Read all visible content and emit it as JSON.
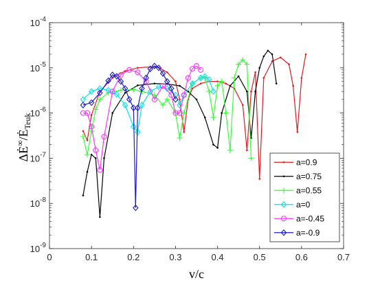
{
  "chart_data": {
    "type": "line",
    "title": "",
    "xlabel": "v/c",
    "ylabel_parts": {
      "prefix": "ΔĖ",
      "sup": "∞",
      "mid": "/Ė",
      "sub": "Teuk"
    },
    "xlim": [
      0,
      0.7
    ],
    "ylim": [
      1e-09,
      0.0001
    ],
    "yscale": "log",
    "x_ticks": [
      "0",
      "0.1",
      "0.2",
      "0.3",
      "0.4",
      "0.5",
      "0.6",
      "0.7"
    ],
    "y_ticks": [
      {
        "base": "10",
        "exp": "-9"
      },
      {
        "base": "10",
        "exp": "-8"
      },
      {
        "base": "10",
        "exp": "-7"
      },
      {
        "base": "10",
        "exp": "-6"
      },
      {
        "base": "10",
        "exp": "-5"
      },
      {
        "base": "10",
        "exp": "-4"
      }
    ],
    "grid": false,
    "legend_position": "bottom-right",
    "series": [
      {
        "name": "a=0.9",
        "color": "#e31a1c",
        "marker": "dot",
        "x": [
          0.08,
          0.09,
          0.1,
          0.12,
          0.15,
          0.18,
          0.21,
          0.24,
          0.26,
          0.28,
          0.3,
          0.31,
          0.32,
          0.33,
          0.34,
          0.36,
          0.38,
          0.4,
          0.42,
          0.44,
          0.46,
          0.47,
          0.48,
          0.49,
          0.5,
          0.51,
          0.53,
          0.55,
          0.57,
          0.58,
          0.59,
          0.6,
          0.61
        ],
        "y": [
          4e-07,
          2.5e-07,
          9e-07,
          3e-06,
          6e-06,
          8.5e-06,
          1e-05,
          1.05e-05,
          1.02e-05,
          8e-06,
          5e-06,
          2e-06,
          3.8e-07,
          2e-06,
          3.5e-06,
          4.5e-06,
          5e-06,
          5e-06,
          4.5e-06,
          3.5e-06,
          1.5e-06,
          1.5e-07,
          3e-06,
          8e-06,
          3.5e-08,
          6e-06,
          1.4e-05,
          1.7e-05,
          1.2e-05,
          4e-06,
          3.8e-07,
          6e-06,
          2e-05
        ]
      },
      {
        "name": "a=0.75",
        "color": "#000000",
        "marker": "dot",
        "x": [
          0.08,
          0.09,
          0.1,
          0.11,
          0.12,
          0.13,
          0.15,
          0.18,
          0.21,
          0.25,
          0.28,
          0.31,
          0.33,
          0.35,
          0.37,
          0.39,
          0.4,
          0.41,
          0.43,
          0.45,
          0.47,
          0.48,
          0.49,
          0.5,
          0.51,
          0.52,
          0.53,
          0.54
        ],
        "y": [
          1.5e-08,
          5e-08,
          1.2e-07,
          1e-07,
          5e-09,
          1e-07,
          1e-06,
          2.8e-06,
          4.1e-06,
          4.5e-06,
          4.4e-06,
          4e-06,
          3e-06,
          2e-06,
          8e-07,
          2e-07,
          1.7e-07,
          1e-06,
          4e-06,
          6.5e-06,
          3e-06,
          2.8e-07,
          3e-06,
          1e-05,
          1.8e-05,
          2.4e-05,
          2e-05,
          4.5e-06
        ]
      },
      {
        "name": "a=0.55",
        "color": "#33ff33",
        "marker": "plus",
        "x": [
          0.08,
          0.09,
          0.1,
          0.11,
          0.12,
          0.14,
          0.17,
          0.2,
          0.22,
          0.25,
          0.27,
          0.28,
          0.3,
          0.31,
          0.32,
          0.34,
          0.36,
          0.37,
          0.38,
          0.39,
          0.4,
          0.41,
          0.42,
          0.43,
          0.44,
          0.45,
          0.46,
          0.47,
          0.48
        ],
        "y": [
          3e-07,
          1.2e-07,
          4e-07,
          1.2e-06,
          2e-06,
          2.8e-06,
          3.2e-06,
          3.3e-06,
          3e-06,
          2.5e-06,
          1.5e-06,
          2e-06,
          1e-06,
          2.8e-07,
          1e-06,
          4.5e-06,
          6e-06,
          6e-06,
          3e-06,
          8e-07,
          4e-06,
          5e-06,
          1e-06,
          1.5e-07,
          6e-06,
          1.2e-05,
          1.5e-05,
          1.2e-05,
          1e-07
        ]
      },
      {
        "name": "a=0",
        "color": "#00e5ee",
        "marker": "diamond",
        "x": [
          0.08,
          0.1,
          0.12,
          0.14,
          0.16,
          0.18,
          0.2,
          0.21,
          0.22,
          0.24,
          0.26,
          0.28,
          0.3,
          0.31,
          0.32,
          0.34,
          0.36,
          0.37,
          0.38,
          0.39
        ],
        "y": [
          2e-06,
          3e-06,
          3.5e-06,
          3.2e-06,
          2.6e-06,
          1.5e-06,
          5e-07,
          3.8e-07,
          1.5e-06,
          3e-06,
          3.8e-06,
          3.5e-06,
          2.5e-06,
          1.5e-06,
          2.5e-06,
          4.5e-06,
          6e-06,
          6.5e-06,
          5.5e-06,
          3e-06
        ]
      },
      {
        "name": "a=-0.45",
        "color": "#ff33ff",
        "marker": "circle",
        "x": [
          0.08,
          0.09,
          0.1,
          0.11,
          0.12,
          0.13,
          0.15,
          0.17,
          0.19,
          0.21,
          0.23,
          0.25,
          0.27,
          0.29,
          0.3,
          0.31,
          0.32,
          0.33,
          0.34,
          0.35,
          0.36
        ],
        "y": [
          1e-06,
          1e-06,
          5e-07,
          1.5e-07,
          5.5e-08,
          3e-07,
          3e-06,
          7e-06,
          9e-06,
          8e-06,
          5e-06,
          2e-06,
          4e-06,
          2.5e-06,
          1e-06,
          1e-06,
          2.5e-06,
          6e-06,
          9.5e-06,
          1.1e-05,
          9e-06
        ]
      },
      {
        "name": "a=-0.9",
        "color": "#1a1acc",
        "marker": "diamond",
        "x": [
          0.08,
          0.1,
          0.12,
          0.14,
          0.15,
          0.16,
          0.17,
          0.18,
          0.19,
          0.2,
          0.205,
          0.21,
          0.22,
          0.23,
          0.24,
          0.25,
          0.26,
          0.27,
          0.28,
          0.29,
          0.3
        ],
        "y": [
          1.5e-06,
          1.7e-06,
          2.8e-06,
          5.2e-06,
          7e-06,
          6.5e-06,
          5e-06,
          3.5e-06,
          2e-06,
          1.3e-06,
          8e-09,
          1.3e-06,
          3.5e-06,
          6e-06,
          9.5e-06,
          1.1e-05,
          1e-05,
          7.5e-06,
          5e-06,
          3.5e-06,
          2e-06
        ]
      }
    ]
  }
}
